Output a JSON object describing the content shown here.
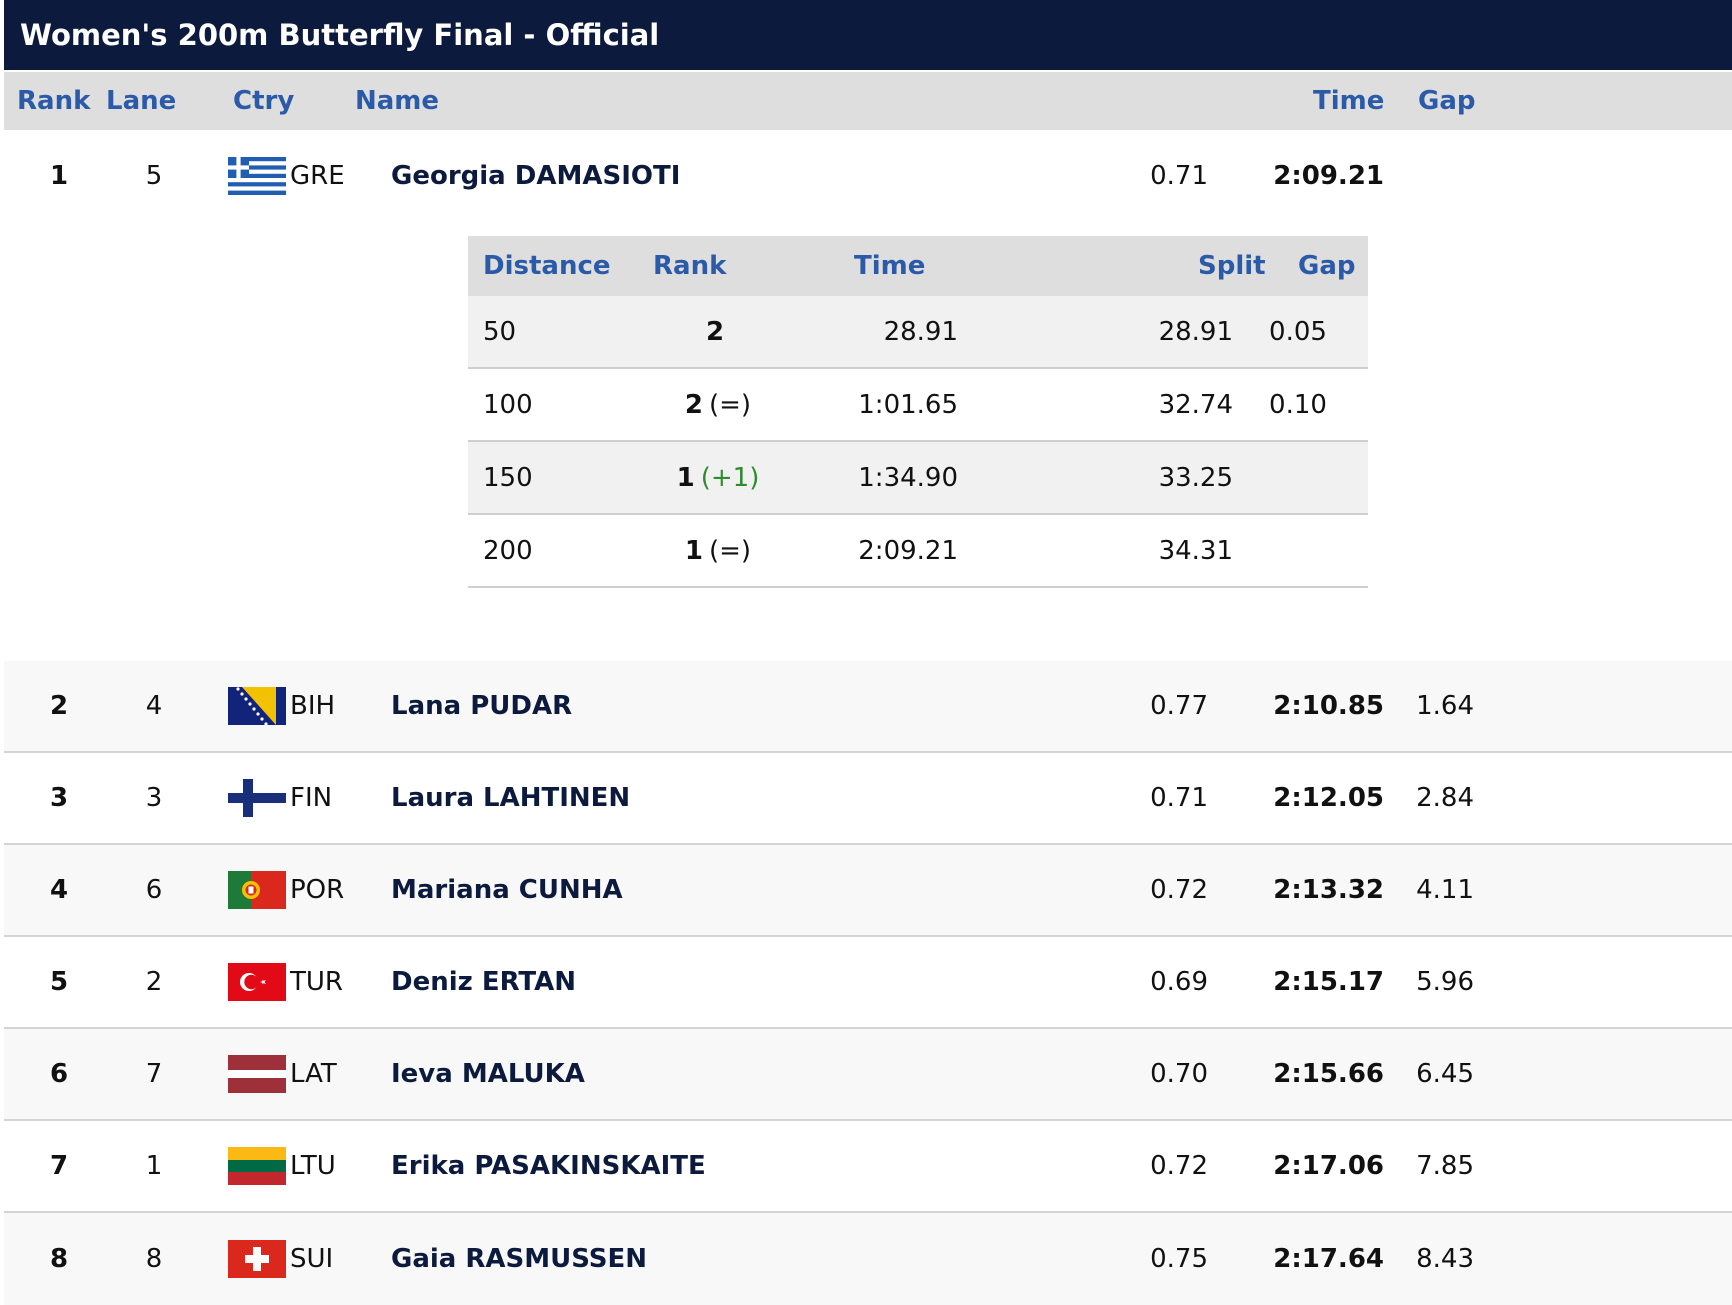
{
  "title": "Women's 200m Butterfly Final  -  Official",
  "header": {
    "rank": "Rank",
    "lane": "Lane",
    "ctry": "Ctry",
    "name": "Name",
    "time": "Time",
    "gap": "Gap"
  },
  "results": [
    {
      "rank": "1",
      "lane": "5",
      "ctry": "GRE",
      "flag": "greece-flag-icon",
      "name": "Georgia DAMASIOTI",
      "reaction": "0.71",
      "time": "2:09.21",
      "gap": ""
    },
    {
      "rank": "2",
      "lane": "4",
      "ctry": "BIH",
      "flag": "bosnia-flag-icon",
      "name": "Lana PUDAR",
      "reaction": "0.77",
      "time": "2:10.85",
      "gap": "1.64"
    },
    {
      "rank": "3",
      "lane": "3",
      "ctry": "FIN",
      "flag": "finland-flag-icon",
      "name": "Laura LAHTINEN",
      "reaction": "0.71",
      "time": "2:12.05",
      "gap": "2.84"
    },
    {
      "rank": "4",
      "lane": "6",
      "ctry": "POR",
      "flag": "portugal-flag-icon",
      "name": "Mariana CUNHA",
      "reaction": "0.72",
      "time": "2:13.32",
      "gap": "4.11"
    },
    {
      "rank": "5",
      "lane": "2",
      "ctry": "TUR",
      "flag": "turkey-flag-icon",
      "name": "Deniz ERTAN",
      "reaction": "0.69",
      "time": "2:15.17",
      "gap": "5.96"
    },
    {
      "rank": "6",
      "lane": "7",
      "ctry": "LAT",
      "flag": "latvia-flag-icon",
      "name": "Ieva MALUKA",
      "reaction": "0.70",
      "time": "2:15.66",
      "gap": "6.45"
    },
    {
      "rank": "7",
      "lane": "1",
      "ctry": "LTU",
      "flag": "lithuania-flag-icon",
      "name": "Erika PASAKINSKAITE",
      "reaction": "0.72",
      "time": "2:17.06",
      "gap": "7.85"
    },
    {
      "rank": "8",
      "lane": "8",
      "ctry": "SUI",
      "flag": "switzerland-flag-icon",
      "name": "Gaia RASMUSSEN",
      "reaction": "0.75",
      "time": "2:17.64",
      "gap": "8.43"
    }
  ],
  "splits": {
    "header": {
      "distance": "Distance",
      "rank": "Rank",
      "time": "Time",
      "split": "Split",
      "gap": "Gap"
    },
    "rows": [
      {
        "distance": "50",
        "rank": "2",
        "change": "",
        "time": "28.91",
        "split": "28.91",
        "gap": "0.05"
      },
      {
        "distance": "100",
        "rank": "2",
        "change": "(=)",
        "time": "1:01.65",
        "split": "32.74",
        "gap": "0.10"
      },
      {
        "distance": "150",
        "rank": "1",
        "change": "(+1)",
        "time": "1:34.90",
        "split": "33.25",
        "gap": ""
      },
      {
        "distance": "200",
        "rank": "1",
        "change": "(=)",
        "time": "2:09.21",
        "split": "34.31",
        "gap": ""
      }
    ]
  },
  "colors": {
    "title_bg": "#0b1a3d",
    "header_text": "#2a5aa8",
    "rank_up": "#2e8b2e"
  }
}
